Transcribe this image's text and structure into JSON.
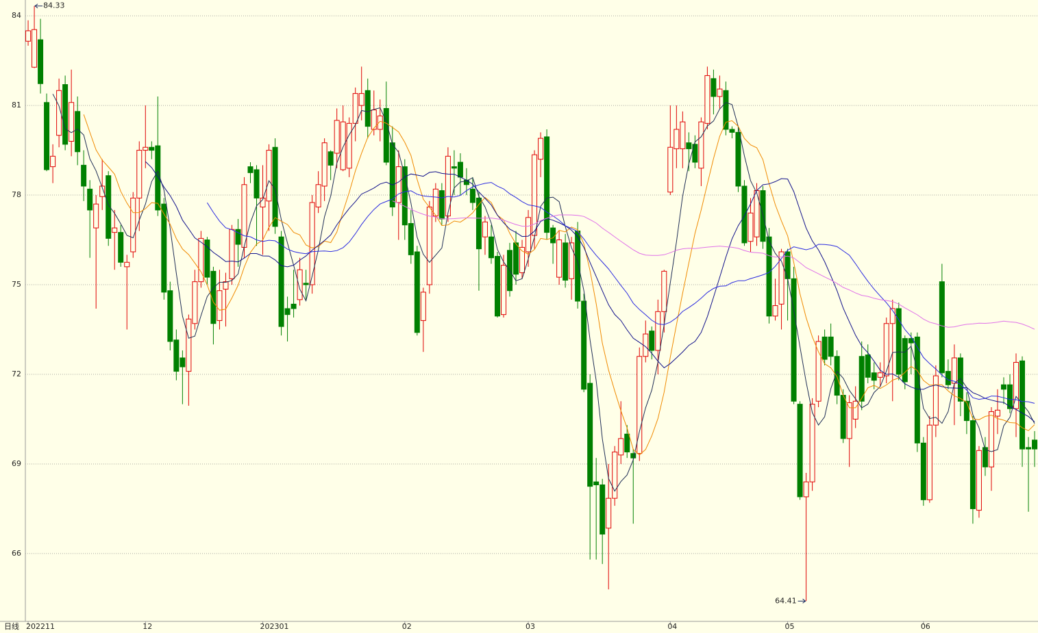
{
  "chart_data": {
    "type": "candlestick",
    "categories": [
      "202211",
      null,
      null,
      null,
      null,
      null,
      null,
      null,
      null,
      null,
      null,
      null,
      null,
      null,
      null,
      null,
      null,
      null,
      null,
      "12",
      null,
      null,
      null,
      null,
      null,
      null,
      null,
      null,
      null,
      null,
      null,
      null,
      null,
      null,
      null,
      null,
      null,
      null,
      "202301",
      null,
      null,
      null,
      null,
      null,
      null,
      null,
      null,
      null,
      null,
      null,
      null,
      null,
      null,
      null,
      null,
      null,
      null,
      null,
      null,
      null,
      null,
      "02",
      null,
      null,
      null,
      null,
      null,
      null,
      null,
      null,
      null,
      null,
      null,
      null,
      null,
      null,
      null,
      null,
      null,
      null,
      null,
      "03",
      null,
      null,
      null,
      null,
      null,
      null,
      null,
      null,
      null,
      null,
      null,
      null,
      null,
      null,
      null,
      null,
      null,
      null,
      null,
      null,
      null,
      null,
      "04",
      null,
      null,
      null,
      null,
      null,
      null,
      null,
      null,
      null,
      null,
      null,
      null,
      null,
      null,
      null,
      null,
      null,
      null,
      "05",
      null,
      null,
      null,
      null,
      null,
      null,
      null,
      null,
      null,
      null,
      null,
      null,
      null,
      null,
      null,
      null,
      null,
      null,
      null,
      null,
      null,
      "06",
      null,
      null,
      null,
      null,
      null,
      null,
      null,
      null,
      null,
      null,
      null,
      null,
      null,
      null,
      null,
      null,
      null,
      null
    ],
    "open": [
      83.15,
      82.28,
      83.2,
      81.1,
      78.95,
      80.0,
      81.7,
      79.8,
      80.8,
      79.0,
      78.2,
      76.9,
      77.95,
      78.65,
      76.75,
      76.75,
      75.6,
      76.1,
      77.9,
      79.5,
      79.6,
      79.65,
      77.7,
      74.8,
      73.15,
      72.55,
      72.1,
      73.7,
      75.1,
      76.5,
      75.45,
      73.8,
      74.85,
      75.2,
      76.85,
      76.25,
      78.95,
      78.85,
      77.6,
      77.8,
      79.6,
      76.6,
      74.2,
      74.35,
      74.5,
      75.05,
      75.0,
      77.6,
      78.3,
      79.45,
      79.4,
      78.85,
      78.9,
      80.4,
      81.0,
      81.5,
      80.2,
      80.2,
      80.9,
      79.75,
      77.75,
      78.95,
      77.05,
      76.1,
      73.8,
      75.0,
      77.3,
      78.15,
      77.3,
      78.95,
      79.1,
      78.5,
      78.2,
      77.9,
      76.6,
      76.6,
      75.95,
      74.0,
      76.15,
      76.4,
      75.4,
      76.1,
      76.65,
      79.2,
      79.95,
      76.9,
      75.25,
      76.4,
      75.2,
      76.8,
      74.45,
      71.7,
      68.4,
      68.3,
      66.85,
      67.85,
      69.3,
      70.0,
      69.35,
      69.35,
      72.6,
      73.45,
      72.8,
      74.1,
      78.1,
      79.55,
      79.55,
      79.75,
      79.7,
      78.9,
      80.4,
      81.9,
      81.3,
      81.5,
      80.2,
      80.1,
      78.3,
      76.45,
      76.6,
      78.15,
      76.6,
      73.95,
      74.35,
      76.1,
      75.2,
      71.0,
      67.9,
      68.4,
      71.1,
      73.25,
      73.25,
      72.6,
      71.3,
      69.85,
      70.5,
      72.6,
      72.65,
      72.05,
      71.9,
      71.95,
      73.7,
      74.2,
      73.2,
      73.2,
      73.25,
      69.7,
      67.8,
      70.3,
      75.1,
      72.1,
      71.7,
      72.55,
      71.1,
      70.45,
      67.45,
      69.55,
      68.9,
      70.6,
      71.65,
      71.65,
      70.85,
      72.45,
      69.55,
      69.8
    ],
    "high": [
      83.85,
      84.33,
      83.9,
      81.4,
      79.7,
      81.9,
      82.0,
      82.2,
      81.3,
      79.5,
      78.5,
      78.0,
      79.2,
      78.8,
      77.5,
      77.0,
      76.0,
      78.1,
      79.8,
      81.0,
      79.8,
      81.3,
      77.9,
      75.1,
      73.5,
      72.8,
      74.0,
      75.5,
      76.8,
      76.6,
      75.6,
      75.5,
      75.4,
      77.0,
      77.2,
      78.6,
      79.1,
      79.0,
      79.0,
      79.7,
      79.9,
      76.8,
      74.6,
      75.5,
      75.9,
      75.5,
      78.0,
      78.8,
      79.9,
      79.5,
      80.9,
      81.0,
      80.6,
      81.6,
      82.3,
      81.9,
      81.5,
      81.2,
      81.8,
      80.3,
      79.5,
      79.2,
      77.5,
      76.3,
      74.9,
      77.8,
      78.4,
      78.4,
      79.6,
      79.5,
      79.4,
      78.9,
      78.6,
      78.1,
      77.3,
      77.0,
      76.1,
      76.0,
      76.4,
      76.8,
      76.5,
      77.5,
      79.5,
      80.1,
      80.2,
      77.0,
      76.8,
      76.7,
      76.6,
      77.1,
      74.7,
      72.0,
      69.2,
      68.5,
      69.0,
      69.6,
      71.1,
      70.3,
      69.5,
      72.9,
      73.8,
      73.6,
      74.5,
      75.5,
      81.0,
      81.0,
      80.8,
      80.1,
      80.0,
      80.6,
      82.3,
      82.2,
      82.0,
      81.8,
      80.3,
      80.3,
      78.5,
      77.9,
      78.4,
      78.3,
      76.9,
      75.2,
      76.2,
      76.2,
      75.6,
      71.1,
      68.7,
      71.2,
      73.3,
      73.5,
      73.7,
      72.8,
      71.5,
      71.3,
      71.6,
      73.1,
      73.0,
      72.4,
      72.4,
      73.9,
      74.5,
      74.4,
      73.3,
      73.4,
      73.4,
      69.9,
      70.6,
      72.3,
      75.7,
      72.5,
      73.0,
      72.7,
      71.4,
      70.6,
      69.6,
      69.9,
      70.9,
      71.5,
      71.9,
      72.0,
      72.7,
      72.6,
      69.9,
      70.1
    ],
    "low": [
      83.0,
      82.25,
      81.4,
      78.8,
      78.4,
      79.6,
      79.5,
      79.3,
      79.0,
      77.8,
      75.9,
      74.2,
      77.5,
      76.3,
      75.5,
      75.6,
      73.5,
      75.9,
      76.8,
      78.9,
      79.2,
      77.3,
      74.5,
      72.8,
      71.8,
      71.0,
      70.95,
      73.5,
      74.9,
      75.0,
      73.0,
      73.5,
      73.6,
      75.0,
      75.6,
      75.9,
      78.4,
      76.3,
      76.0,
      76.8,
      76.7,
      73.3,
      73.1,
      73.9,
      74.3,
      74.5,
      74.7,
      77.4,
      77.8,
      78.5,
      78.9,
      78.8,
      78.6,
      79.8,
      80.5,
      79.9,
      80.0,
      79.8,
      79.0,
      77.3,
      76.5,
      76.5,
      75.7,
      73.3,
      72.75,
      74.7,
      77.1,
      77.0,
      77.1,
      78.0,
      78.0,
      78.0,
      77.5,
      74.8,
      76.0,
      75.7,
      73.9,
      73.9,
      74.6,
      75.0,
      75.2,
      75.6,
      76.2,
      78.6,
      76.5,
      75.7,
      75.0,
      74.9,
      74.5,
      74.2,
      71.4,
      65.8,
      65.8,
      65.65,
      64.8,
      67.6,
      69.0,
      69.2,
      67.0,
      69.1,
      72.4,
      72.5,
      72.0,
      73.4,
      78.0,
      78.9,
      78.9,
      78.8,
      78.9,
      78.3,
      80.2,
      80.7,
      80.9,
      80.0,
      79.9,
      78.1,
      76.3,
      76.1,
      76.3,
      76.2,
      73.7,
      73.8,
      73.5,
      73.8,
      71.0,
      67.8,
      64.41,
      68.1,
      70.9,
      72.3,
      72.3,
      71.0,
      69.7,
      68.9,
      70.2,
      70.8,
      71.7,
      71.5,
      71.6,
      71.7,
      71.1,
      71.8,
      71.5,
      72.0,
      69.4,
      67.6,
      67.7,
      69.9,
      71.9,
      71.5,
      70.3,
      70.6,
      70.0,
      67.0,
      67.2,
      68.6,
      68.1,
      70.0,
      71.0,
      70.7,
      69.9,
      68.9,
      67.4,
      68.9
    ],
    "close": [
      83.5,
      83.54,
      81.73,
      78.85,
      79.3,
      81.5,
      79.7,
      81.1,
      79.45,
      78.3,
      77.5,
      77.7,
      78.3,
      76.55,
      76.9,
      75.75,
      75.75,
      77.9,
      79.5,
      79.6,
      79.5,
      77.5,
      74.75,
      73.1,
      72.1,
      72.25,
      73.85,
      75.1,
      76.55,
      75.25,
      73.7,
      74.8,
      75.1,
      76.85,
      76.35,
      78.35,
      78.75,
      77.9,
      77.9,
      79.5,
      76.95,
      73.6,
      74.0,
      74.2,
      75.5,
      75.0,
      77.75,
      78.35,
      79.75,
      79.0,
      80.5,
      80.45,
      80.4,
      81.4,
      81.4,
      80.3,
      80.85,
      80.65,
      79.1,
      77.6,
      78.95,
      77.0,
      76.0,
      73.4,
      74.75,
      77.6,
      78.2,
      77.2,
      79.3,
      78.9,
      78.6,
      78.35,
      77.75,
      76.2,
      77.1,
      75.9,
      73.95,
      75.65,
      74.8,
      75.35,
      76.25,
      77.25,
      79.35,
      79.9,
      76.75,
      76.4,
      76.5,
      75.15,
      76.4,
      74.45,
      71.5,
      68.25,
      68.3,
      66.65,
      67.85,
      69.4,
      69.85,
      69.4,
      69.2,
      72.6,
      73.35,
      72.8,
      74.1,
      75.45,
      79.6,
      80.2,
      80.45,
      79.55,
      79.1,
      80.45,
      82.0,
      81.3,
      81.55,
      80.2,
      80.1,
      78.3,
      76.4,
      77.4,
      78.15,
      76.45,
      73.95,
      74.3,
      76.1,
      75.2,
      71.1,
      67.9,
      68.4,
      71.0,
      73.1,
      72.5,
      72.6,
      71.3,
      69.85,
      71.05,
      71.1,
      71.1,
      71.9,
      71.8,
      72.05,
      73.7,
      74.2,
      72.0,
      71.75,
      73.05,
      69.7,
      67.8,
      70.3,
      71.95,
      72.05,
      71.65,
      72.55,
      71.1,
      70.45,
      67.5,
      69.45,
      68.9,
      70.75,
      70.8,
      71.5,
      70.85,
      72.4,
      69.5,
      69.5,
      69.5
    ],
    "up_color": "#e00000",
    "down_color": "#008000",
    "ylim": [
      63.73,
      84.53
    ],
    "yticks": [
      66,
      69,
      72,
      75,
      78,
      81,
      84
    ],
    "grid": true,
    "period_label": "日线",
    "annotations": [
      84.33,
      64.41
    ],
    "moving_averages": [
      {
        "period": 5,
        "color": "#1f2d55"
      },
      {
        "period": 10,
        "color": "#f08a00"
      },
      {
        "period": 20,
        "color": "#10108a"
      },
      {
        "period": 30,
        "color": "#2a2ae0"
      },
      {
        "period": 60,
        "color": "#e070e8"
      }
    ]
  }
}
